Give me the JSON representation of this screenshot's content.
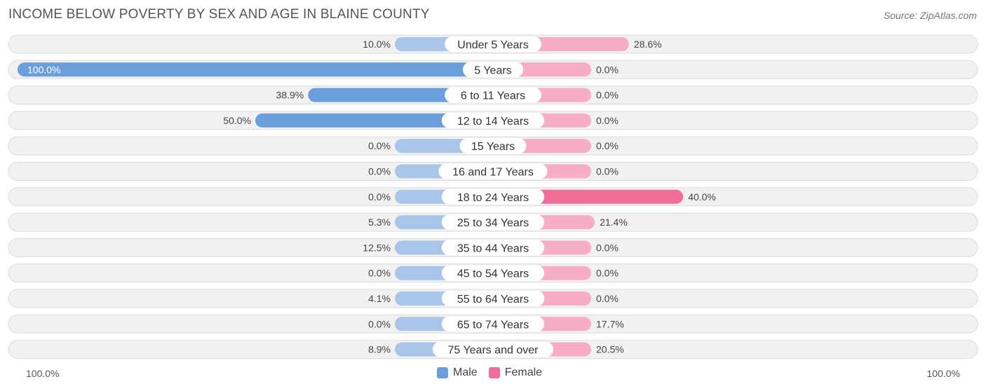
{
  "header": {
    "title": "INCOME BELOW POVERTY BY SEX AND AGE IN BLAINE COUNTY",
    "source": "Source: ZipAtlas.com"
  },
  "axis": {
    "left_label": "100.0%",
    "right_label": "100.0%"
  },
  "legend": {
    "male_label": "Male",
    "female_label": "Female"
  },
  "colors": {
    "male_strong": "#6a9fdc",
    "male_light": "#a9c6ea",
    "female_strong": "#f06e98",
    "female_light": "#f6adc5",
    "row_bg": "#f1f1f1",
    "row_border": "#dcdcdc"
  },
  "chart_data": {
    "type": "bar",
    "orientation": "horizontal-diverging",
    "title": "INCOME BELOW POVERTY BY SEX AND AGE IN BLAINE COUNTY",
    "xlim": [
      -100,
      100
    ],
    "categories": [
      "Under 5 Years",
      "5 Years",
      "6 to 11 Years",
      "12 to 14 Years",
      "15 Years",
      "16 and 17 Years",
      "18 to 24 Years",
      "25 to 34 Years",
      "35 to 44 Years",
      "45 to 54 Years",
      "55 to 64 Years",
      "65 to 74 Years",
      "75 Years and over"
    ],
    "series": [
      {
        "name": "Male",
        "values": [
          10.0,
          100.0,
          38.9,
          50.0,
          0.0,
          0.0,
          0.0,
          5.3,
          12.5,
          0.0,
          4.1,
          0.0,
          8.9
        ],
        "labels": [
          "10.0%",
          "100.0%",
          "38.9%",
          "50.0%",
          "0.0%",
          "0.0%",
          "0.0%",
          "5.3%",
          "12.5%",
          "0.0%",
          "4.1%",
          "0.0%",
          "8.9%"
        ]
      },
      {
        "name": "Female",
        "values": [
          28.6,
          0.0,
          0.0,
          0.0,
          0.0,
          0.0,
          40.0,
          21.4,
          0.0,
          0.0,
          0.0,
          17.7,
          20.5
        ],
        "labels": [
          "28.6%",
          "0.0%",
          "0.0%",
          "0.0%",
          "0.0%",
          "0.0%",
          "40.0%",
          "21.4%",
          "0.0%",
          "0.0%",
          "0.0%",
          "17.7%",
          "20.5%"
        ]
      }
    ],
    "legend_position": "bottom-center"
  }
}
